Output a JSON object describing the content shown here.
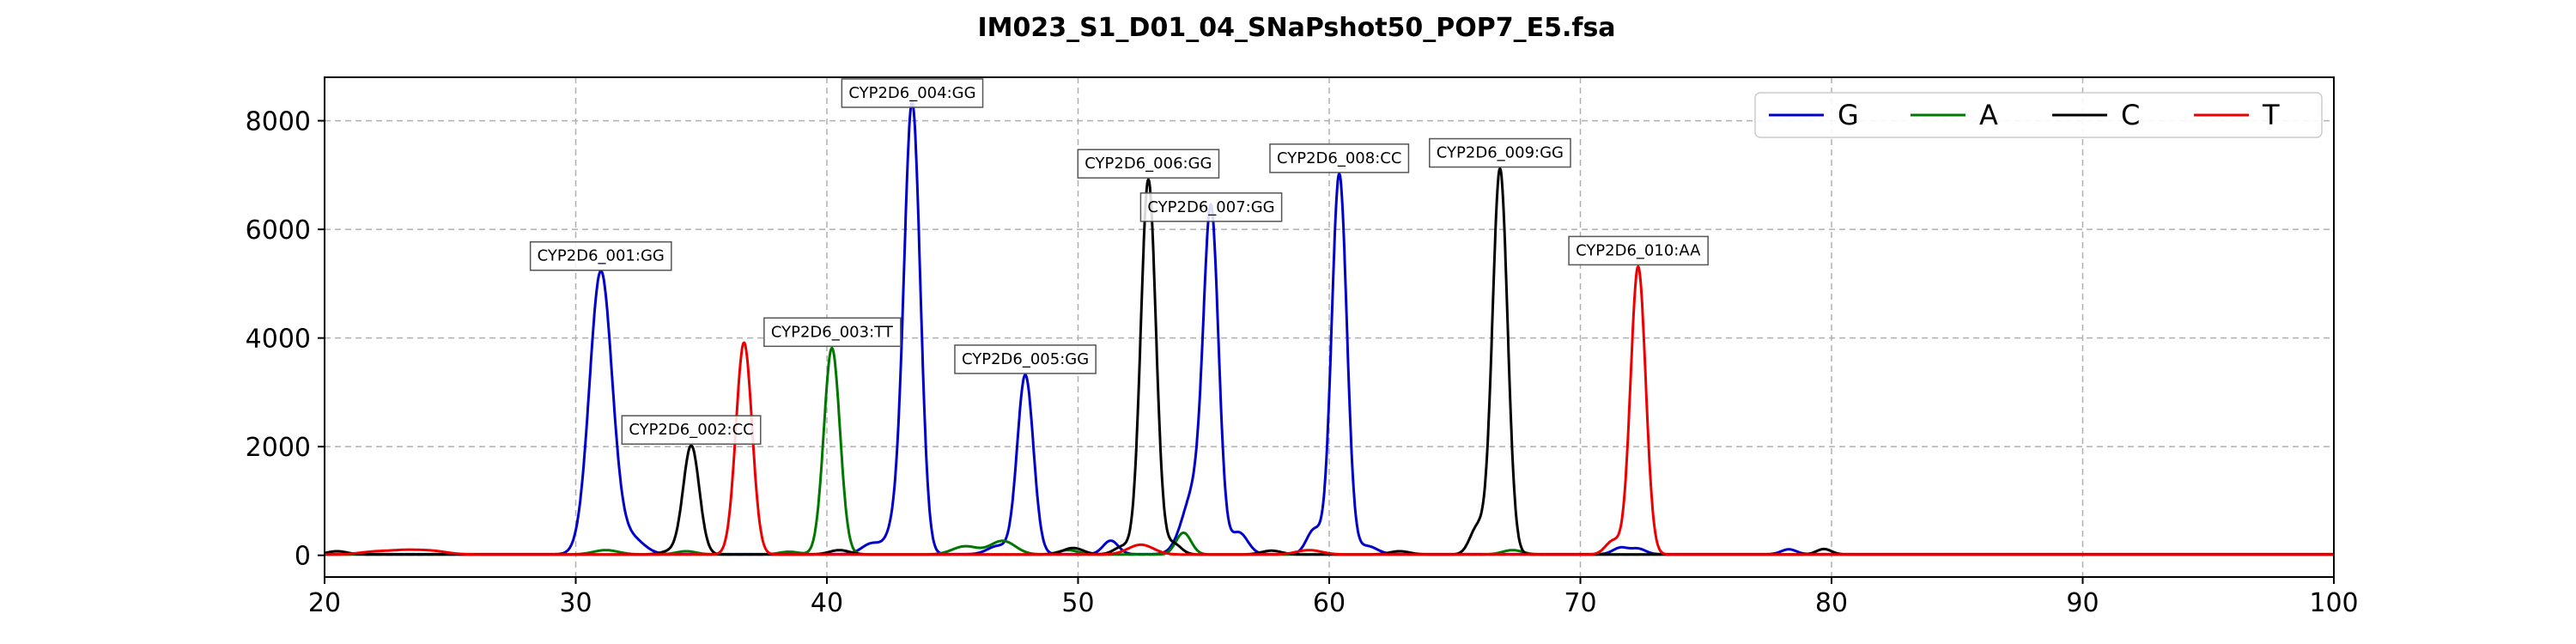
{
  "chart_data": {
    "type": "line",
    "title": "IM023_S1_D01_04_SNaPshot50_POP7_E5.fsa",
    "xlabel": "",
    "ylabel": "",
    "xlim": [
      20,
      100
    ],
    "ylim": [
      -400,
      8800
    ],
    "x_ticks": [
      20,
      30,
      40,
      50,
      60,
      70,
      80,
      90,
      100
    ],
    "y_ticks": [
      0,
      2000,
      4000,
      6000,
      8000
    ],
    "grid": true,
    "legend_position": "top-right",
    "series": [
      {
        "name": "G",
        "color": "#0000cc",
        "baseline": 20,
        "peaks": [
          {
            "x": 31.0,
            "y": 5200,
            "w": 0.45
          },
          {
            "x": 32.2,
            "y": 300,
            "w": 0.5
          },
          {
            "x": 41.8,
            "y": 200,
            "w": 0.4
          },
          {
            "x": 42.8,
            "y": 550,
            "w": 0.35
          },
          {
            "x": 43.4,
            "y": 8200,
            "w": 0.32
          },
          {
            "x": 46.8,
            "y": 150,
            "w": 0.4
          },
          {
            "x": 47.9,
            "y": 3300,
            "w": 0.32
          },
          {
            "x": 51.3,
            "y": 250,
            "w": 0.3
          },
          {
            "x": 54.6,
            "y": 1100,
            "w": 0.45
          },
          {
            "x": 55.3,
            "y": 6100,
            "w": 0.3
          },
          {
            "x": 56.4,
            "y": 400,
            "w": 0.35
          },
          {
            "x": 59.4,
            "y": 450,
            "w": 0.3
          },
          {
            "x": 60.4,
            "y": 7000,
            "w": 0.3
          },
          {
            "x": 61.5,
            "y": 150,
            "w": 0.4
          },
          {
            "x": 71.6,
            "y": 120,
            "w": 0.3
          },
          {
            "x": 72.3,
            "y": 100,
            "w": 0.3
          },
          {
            "x": 78.3,
            "y": 90,
            "w": 0.3
          }
        ]
      },
      {
        "name": "A",
        "color": "#007700",
        "baseline": 15,
        "peaks": [
          {
            "x": 31.2,
            "y": 80,
            "w": 0.5
          },
          {
            "x": 34.4,
            "y": 60,
            "w": 0.4
          },
          {
            "x": 38.5,
            "y": 50,
            "w": 0.4
          },
          {
            "x": 40.2,
            "y": 3800,
            "w": 0.32
          },
          {
            "x": 45.5,
            "y": 150,
            "w": 0.5
          },
          {
            "x": 47.0,
            "y": 250,
            "w": 0.5
          },
          {
            "x": 49.6,
            "y": 80,
            "w": 0.4
          },
          {
            "x": 54.2,
            "y": 400,
            "w": 0.3
          },
          {
            "x": 67.3,
            "y": 80,
            "w": 0.4
          }
        ]
      },
      {
        "name": "C",
        "color": "#000000",
        "baseline": 15,
        "peaks": [
          {
            "x": 20.5,
            "y": 60,
            "w": 0.4
          },
          {
            "x": 33.8,
            "y": 60,
            "w": 0.4
          },
          {
            "x": 34.6,
            "y": 2000,
            "w": 0.32
          },
          {
            "x": 40.5,
            "y": 80,
            "w": 0.4
          },
          {
            "x": 49.8,
            "y": 120,
            "w": 0.4
          },
          {
            "x": 51.8,
            "y": 150,
            "w": 0.35
          },
          {
            "x": 52.8,
            "y": 6900,
            "w": 0.3
          },
          {
            "x": 53.8,
            "y": 200,
            "w": 0.3
          },
          {
            "x": 57.7,
            "y": 70,
            "w": 0.4
          },
          {
            "x": 62.8,
            "y": 60,
            "w": 0.4
          },
          {
            "x": 65.9,
            "y": 500,
            "w": 0.3
          },
          {
            "x": 66.8,
            "y": 7100,
            "w": 0.3
          },
          {
            "x": 79.7,
            "y": 100,
            "w": 0.3
          }
        ]
      },
      {
        "name": "T",
        "color": "#ee0000",
        "baseline": 15,
        "peaks": [
          {
            "x": 22.0,
            "y": 50,
            "w": 0.6
          },
          {
            "x": 23.2,
            "y": 70,
            "w": 0.6
          },
          {
            "x": 24.3,
            "y": 60,
            "w": 0.6
          },
          {
            "x": 36.7,
            "y": 3900,
            "w": 0.32
          },
          {
            "x": 52.5,
            "y": 180,
            "w": 0.5
          },
          {
            "x": 59.2,
            "y": 80,
            "w": 0.5
          },
          {
            "x": 71.3,
            "y": 250,
            "w": 0.3
          },
          {
            "x": 72.3,
            "y": 5300,
            "w": 0.3
          }
        ]
      }
    ],
    "annotations": [
      {
        "text": "CYP2D6_001:GG",
        "x": 31.0,
        "y": 5200
      },
      {
        "text": "CYP2D6_002:CC",
        "x": 34.6,
        "y": 2000
      },
      {
        "text": "CYP2D6_003:TT",
        "x": 40.2,
        "y": 3800
      },
      {
        "text": "CYP2D6_004:GG",
        "x": 43.4,
        "y": 8200
      },
      {
        "text": "CYP2D6_005:GG",
        "x": 47.9,
        "y": 3300
      },
      {
        "text": "CYP2D6_006:GG",
        "x": 52.8,
        "y": 6900
      },
      {
        "text": "CYP2D6_007:GG",
        "x": 55.3,
        "y": 6100
      },
      {
        "text": "CYP2D6_008:CC",
        "x": 60.4,
        "y": 7000
      },
      {
        "text": "CYP2D6_009:GG",
        "x": 66.8,
        "y": 7100
      },
      {
        "text": "CYP2D6_010:AA",
        "x": 72.3,
        "y": 5300
      }
    ]
  }
}
